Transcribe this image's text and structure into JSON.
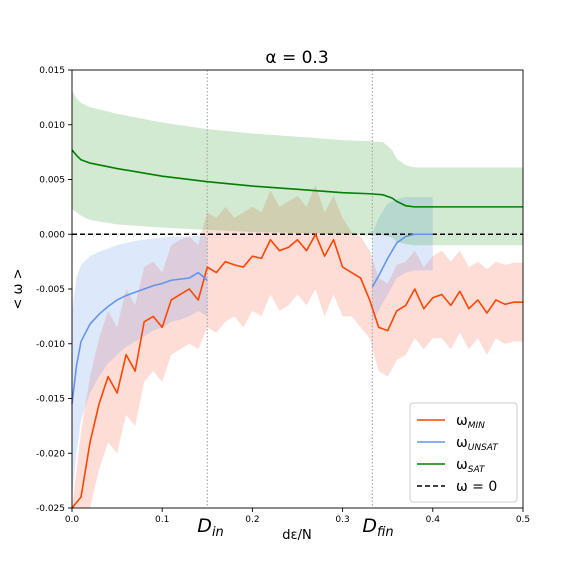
{
  "chart_data": {
    "type": "line",
    "title": "α = 0.3",
    "xlabel": "dε/N",
    "ylabel": "< ω >",
    "xlim": [
      0.0,
      0.5
    ],
    "ylim": [
      -0.025,
      0.015
    ],
    "grid": false,
    "legend_position": "bottom-right",
    "xticks": [
      "0.0",
      "0.1",
      "0.2",
      "0.3",
      "0.4",
      "0.5"
    ],
    "yticks": [
      "0.015",
      "0.010",
      "0.005",
      "0.000",
      "-0.005",
      "-0.010",
      "-0.015",
      "-0.020",
      "-0.025"
    ],
    "vlines": [
      {
        "x": 0.15,
        "label_main": "D",
        "label_sub": "in"
      },
      {
        "x": 0.333,
        "label_main": "D",
        "label_sub": "fin"
      }
    ],
    "hline": {
      "y": 0.0,
      "name": "ω = 0",
      "color": "#000000",
      "style": "dashed"
    },
    "series": [
      {
        "name": "ω_MIN",
        "legend_main": "ω",
        "legend_sub": "MIN",
        "color": "#ff4500",
        "band_color": "#ff6347",
        "x": [
          0.0,
          0.01,
          0.02,
          0.03,
          0.04,
          0.05,
          0.06,
          0.07,
          0.08,
          0.09,
          0.1,
          0.11,
          0.12,
          0.13,
          0.14,
          0.15,
          0.16,
          0.17,
          0.18,
          0.19,
          0.2,
          0.21,
          0.22,
          0.23,
          0.24,
          0.25,
          0.26,
          0.27,
          0.28,
          0.29,
          0.3,
          0.31,
          0.32,
          0.33,
          0.34,
          0.35,
          0.36,
          0.37,
          0.38,
          0.39,
          0.4,
          0.41,
          0.42,
          0.43,
          0.44,
          0.45,
          0.46,
          0.47,
          0.48,
          0.49,
          0.5
        ],
        "y": [
          -0.03,
          -0.024,
          -0.019,
          -0.0155,
          -0.013,
          -0.0145,
          -0.011,
          -0.0125,
          -0.008,
          -0.0075,
          -0.0085,
          -0.006,
          -0.0055,
          -0.005,
          -0.006,
          -0.003,
          -0.0035,
          -0.0025,
          -0.0028,
          -0.003,
          -0.002,
          -0.0022,
          -0.0005,
          -0.0015,
          -0.0012,
          -0.0005,
          -0.0015,
          0.0,
          -0.002,
          -0.0005,
          -0.003,
          -0.0035,
          -0.004,
          -0.006,
          -0.0085,
          -0.0088,
          -0.007,
          -0.0065,
          -0.005,
          -0.0068,
          -0.0058,
          -0.0055,
          -0.0065,
          -0.0052,
          -0.0068,
          -0.006,
          -0.0072,
          -0.006,
          -0.0064,
          -0.0062,
          -0.0062
        ],
        "band_lower": [
          -0.035,
          -0.03,
          -0.025,
          -0.0215,
          -0.019,
          -0.02,
          -0.0165,
          -0.0175,
          -0.0135,
          -0.0125,
          -0.0135,
          -0.011,
          -0.0105,
          -0.01,
          -0.0105,
          -0.0085,
          -0.009,
          -0.008,
          -0.0075,
          -0.0085,
          -0.007,
          -0.0075,
          -0.0055,
          -0.007,
          -0.0065,
          -0.0055,
          -0.0065,
          -0.005,
          -0.0075,
          -0.0055,
          -0.0075,
          -0.0075,
          -0.0085,
          -0.0095,
          -0.0125,
          -0.013,
          -0.0115,
          -0.011,
          -0.0095,
          -0.0105,
          -0.0095,
          -0.0095,
          -0.0105,
          -0.009,
          -0.0105,
          -0.0095,
          -0.011,
          -0.0095,
          -0.01,
          -0.0098,
          -0.0098
        ],
        "band_upper": [
          -0.025,
          -0.018,
          -0.013,
          -0.0095,
          -0.007,
          -0.0085,
          -0.005,
          -0.0065,
          -0.003,
          -0.0025,
          -0.0035,
          -0.001,
          -0.0005,
          -0.0002,
          -0.001,
          0.002,
          0.0015,
          0.0025,
          0.0015,
          0.002,
          0.0025,
          0.002,
          0.004,
          0.0025,
          0.003,
          0.0035,
          0.0025,
          0.0045,
          0.002,
          0.0035,
          0.0015,
          0.0002,
          -0.0002,
          -0.0015,
          -0.004,
          -0.0045,
          -0.0028,
          -0.0025,
          -0.0015,
          -0.003,
          -0.002,
          -0.0015,
          -0.0025,
          -0.0015,
          -0.003,
          -0.0025,
          -0.0032,
          -0.0025,
          -0.0028,
          -0.0026,
          -0.0026
        ]
      },
      {
        "name": "ω_UNSAT",
        "legend_main": "ω",
        "legend_sub": "UNSAT",
        "color": "#6495ed",
        "band_color": "#6495ed",
        "x": [
          0.0,
          0.005,
          0.01,
          0.02,
          0.03,
          0.04,
          0.05,
          0.06,
          0.07,
          0.08,
          0.09,
          0.1,
          0.11,
          0.12,
          0.13,
          0.14,
          0.15,
          0.333,
          0.34,
          0.35,
          0.36,
          0.37,
          0.38,
          0.4,
          0.5
        ],
        "y": [
          -0.0155,
          -0.012,
          -0.0098,
          -0.0082,
          -0.0073,
          -0.0066,
          -0.006,
          -0.0056,
          -0.0053,
          -0.005,
          -0.0047,
          -0.0045,
          -0.0042,
          -0.0041,
          -0.004,
          -0.0035,
          -0.0042,
          -0.0048,
          -0.0038,
          -0.0022,
          -0.0008,
          -0.0002,
          0.0,
          0.0,
          0.0
        ],
        "band_lower": [
          -0.024,
          -0.02,
          -0.017,
          -0.0145,
          -0.013,
          -0.0118,
          -0.011,
          -0.0103,
          -0.0098,
          -0.0093,
          -0.0088,
          -0.0085,
          -0.008,
          -0.0078,
          -0.0075,
          -0.007,
          -0.0075,
          -0.008,
          -0.007,
          -0.0055,
          -0.004,
          -0.0035,
          -0.0033,
          -0.0033,
          -0.0033
        ],
        "band_upper": [
          -0.007,
          -0.004,
          -0.0028,
          -0.002,
          -0.0016,
          -0.0013,
          -0.001,
          -0.0008,
          -0.0006,
          -0.0005,
          -0.0004,
          -0.0003,
          -0.0002,
          -0.0002,
          -0.0002,
          -0.0001,
          -0.0002,
          0.0,
          0.0015,
          0.0028,
          0.0032,
          0.0034,
          0.0034,
          0.0034,
          0.0034
        ]
      },
      {
        "name": "ω_SAT",
        "legend_main": "ω",
        "legend_sub": "SAT",
        "color": "#008000",
        "band_color": "#2ca02c",
        "x": [
          0.0,
          0.005,
          0.01,
          0.02,
          0.05,
          0.1,
          0.15,
          0.2,
          0.25,
          0.3,
          0.33,
          0.345,
          0.355,
          0.36,
          0.37,
          0.38,
          0.4,
          0.45,
          0.5
        ],
        "y": [
          0.0077,
          0.0072,
          0.0068,
          0.0065,
          0.006,
          0.0053,
          0.0048,
          0.0044,
          0.0041,
          0.0038,
          0.0037,
          0.0036,
          0.0033,
          0.003,
          0.0026,
          0.0025,
          0.0025,
          0.0025,
          0.0025
        ],
        "band_lower": [
          0.0023,
          0.002,
          0.0017,
          0.0013,
          0.0009,
          0.0006,
          0.0004,
          0.0002,
          0.0001,
          0.0,
          -0.0001,
          -0.0001,
          -0.0003,
          -0.0007,
          -0.0009,
          -0.001,
          -0.001,
          -0.001,
          -0.001
        ],
        "band_upper": [
          0.0131,
          0.0124,
          0.012,
          0.0116,
          0.011,
          0.0102,
          0.0096,
          0.0092,
          0.0089,
          0.0086,
          0.0085,
          0.0084,
          0.0077,
          0.0069,
          0.0063,
          0.0061,
          0.0061,
          0.0061,
          0.0061
        ]
      }
    ]
  }
}
